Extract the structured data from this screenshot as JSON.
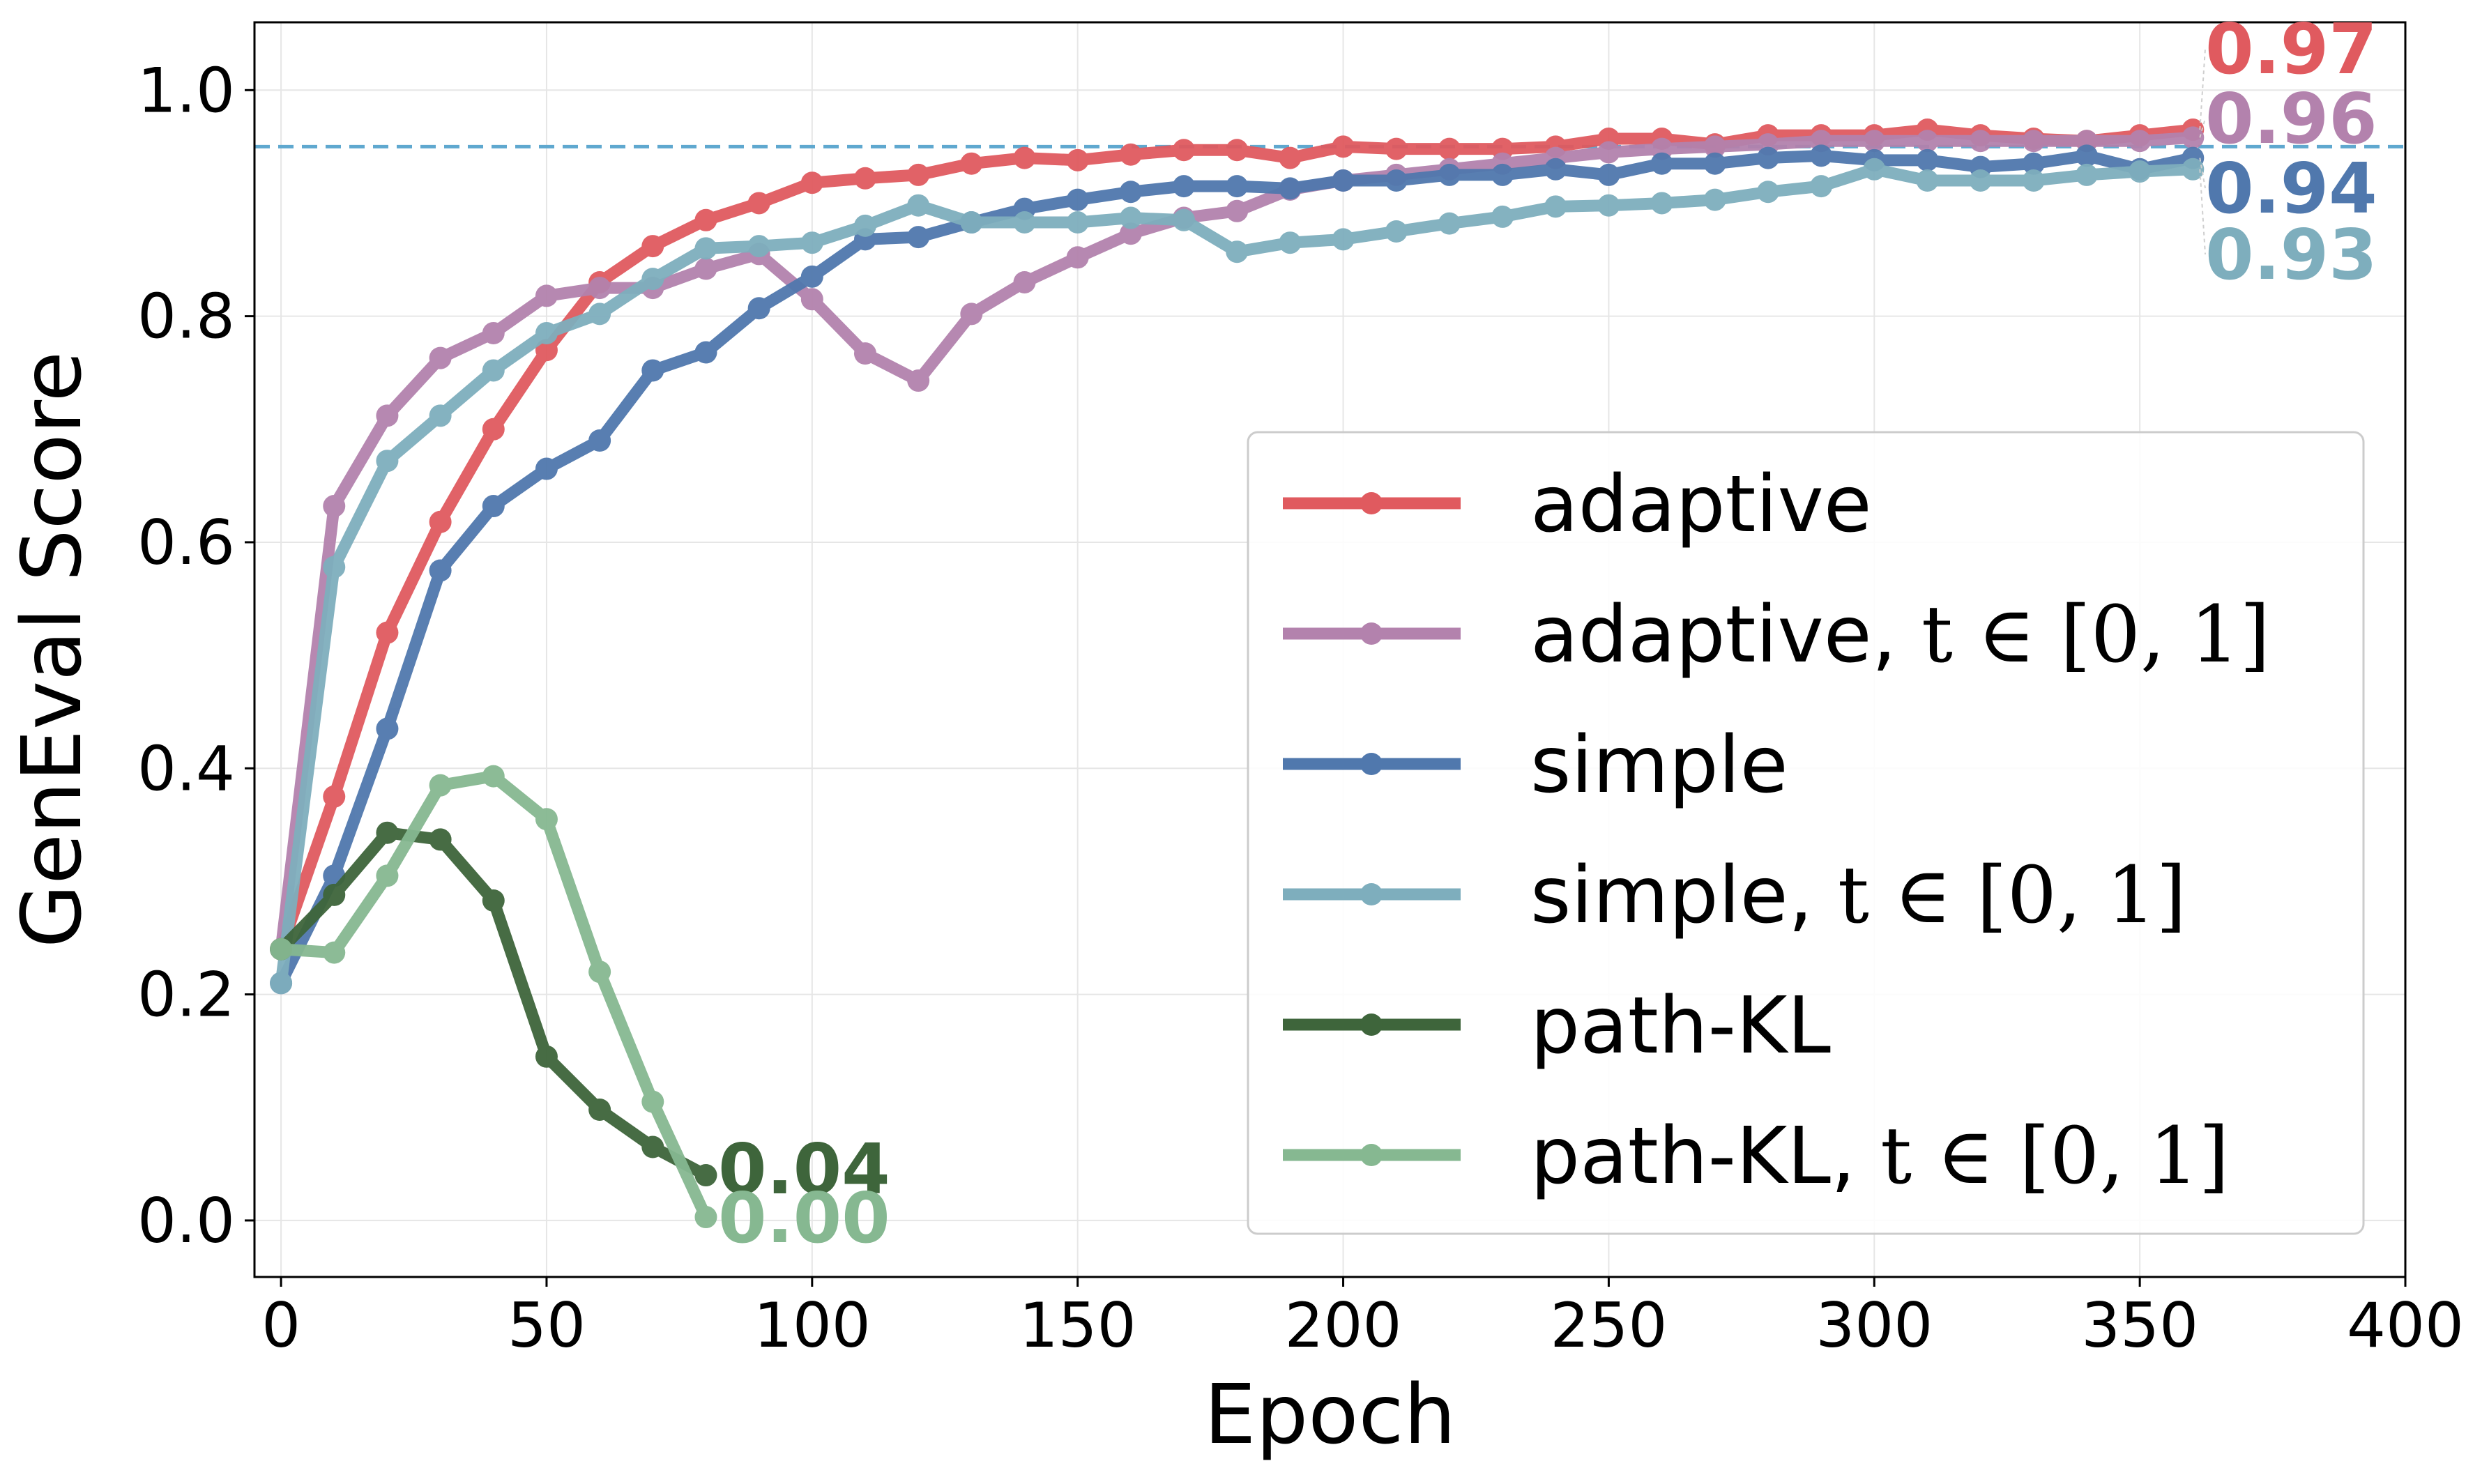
{
  "chart_data": {
    "type": "line",
    "title": "",
    "xlabel": "Epoch",
    "ylabel": "GenEval Score",
    "xlim": [
      -5,
      400
    ],
    "ylim": [
      -0.05,
      1.06
    ],
    "xticks": [
      0,
      50,
      100,
      150,
      200,
      250,
      300,
      350,
      400
    ],
    "yticks": [
      0.0,
      0.2,
      0.4,
      0.6,
      0.8,
      1.0
    ],
    "xtick_labels": [
      "0",
      "50",
      "100",
      "150",
      "200",
      "250",
      "300",
      "350",
      "400"
    ],
    "ytick_labels": [
      "0.0",
      "0.2",
      "0.4",
      "0.6",
      "0.8",
      "1.0"
    ],
    "grid": true,
    "reference_line": {
      "y": 0.95,
      "style": "dashed",
      "color": "#5fa8cf"
    },
    "legend_position": "lower-right",
    "series": [
      {
        "name": "adaptive",
        "legend_main": "adaptive",
        "legend_suffix": "",
        "color": "#e05a5f",
        "x": [
          0,
          10,
          20,
          30,
          40,
          50,
          60,
          70,
          80,
          90,
          100,
          110,
          120,
          130,
          140,
          150,
          160,
          170,
          180,
          190,
          200,
          210,
          220,
          230,
          240,
          250,
          260,
          270,
          280,
          290,
          300,
          310,
          320,
          330,
          340,
          350,
          360
        ],
        "values": [
          0.24,
          0.375,
          0.52,
          0.618,
          0.7,
          0.77,
          0.83,
          0.862,
          0.885,
          0.9,
          0.918,
          0.922,
          0.925,
          0.935,
          0.94,
          0.938,
          0.943,
          0.947,
          0.947,
          0.94,
          0.95,
          0.948,
          0.948,
          0.948,
          0.95,
          0.957,
          0.957,
          0.952,
          0.96,
          0.96,
          0.96,
          0.965,
          0.96,
          0.957,
          0.955,
          0.96,
          0.965
        ],
        "end_label": "0.97"
      },
      {
        "name": "adaptive, t ∈ [0, 1]",
        "legend_main": "adaptive, ",
        "legend_suffix": "t ∈ [0, 1]",
        "color": "#b382ad",
        "x": [
          0,
          10,
          20,
          30,
          40,
          50,
          60,
          70,
          80,
          90,
          100,
          110,
          120,
          130,
          140,
          150,
          160,
          170,
          180,
          190,
          200,
          210,
          220,
          230,
          240,
          250,
          260,
          270,
          280,
          290,
          300,
          310,
          320,
          330,
          340,
          350,
          360
        ],
        "values": [
          0.24,
          0.632,
          0.712,
          0.763,
          0.785,
          0.818,
          0.825,
          0.825,
          0.842,
          0.855,
          0.815,
          0.767,
          0.743,
          0.802,
          0.83,
          0.852,
          0.873,
          0.887,
          0.893,
          0.912,
          0.92,
          0.925,
          0.93,
          0.935,
          0.94,
          0.945,
          0.948,
          0.95,
          0.952,
          0.955,
          0.955,
          0.955,
          0.955,
          0.955,
          0.955,
          0.955,
          0.958
        ],
        "end_label": "0.96"
      },
      {
        "name": "simple",
        "legend_main": "simple",
        "legend_suffix": "",
        "color": "#5078ad",
        "x": [
          0,
          10,
          20,
          30,
          40,
          50,
          60,
          70,
          80,
          90,
          100,
          110,
          120,
          130,
          140,
          150,
          160,
          170,
          180,
          190,
          200,
          210,
          220,
          230,
          240,
          250,
          260,
          270,
          280,
          290,
          300,
          310,
          320,
          330,
          340,
          350,
          360
        ],
        "values": [
          0.21,
          0.305,
          0.435,
          0.575,
          0.632,
          0.665,
          0.69,
          0.752,
          0.768,
          0.807,
          0.835,
          0.868,
          0.87,
          0.883,
          0.895,
          0.903,
          0.91,
          0.915,
          0.915,
          0.913,
          0.92,
          0.92,
          0.925,
          0.925,
          0.93,
          0.925,
          0.935,
          0.935,
          0.94,
          0.942,
          0.938,
          0.938,
          0.932,
          0.935,
          0.942,
          0.93,
          0.94
        ],
        "end_label": "0.94"
      },
      {
        "name": "simple, t ∈ [0, 1]",
        "legend_main": "simple, ",
        "legend_suffix": "t ∈ [0, 1]",
        "color": "#7eaebd",
        "x": [
          0,
          10,
          20,
          30,
          40,
          50,
          60,
          70,
          80,
          90,
          100,
          110,
          120,
          130,
          140,
          150,
          160,
          170,
          180,
          190,
          200,
          210,
          220,
          230,
          240,
          250,
          260,
          270,
          280,
          290,
          300,
          310,
          320,
          330,
          340,
          350,
          360
        ],
        "values": [
          0.21,
          0.578,
          0.672,
          0.712,
          0.752,
          0.785,
          0.802,
          0.833,
          0.86,
          0.862,
          0.865,
          0.88,
          0.898,
          0.883,
          0.883,
          0.883,
          0.887,
          0.885,
          0.857,
          0.865,
          0.868,
          0.875,
          0.882,
          0.888,
          0.897,
          0.898,
          0.9,
          0.903,
          0.91,
          0.915,
          0.93,
          0.92,
          0.92,
          0.92,
          0.925,
          0.928,
          0.93
        ],
        "end_label": "0.93"
      },
      {
        "name": "path-KL",
        "legend_main": "path-KL",
        "legend_suffix": "",
        "color": "#3e653b",
        "x": [
          0,
          10,
          20,
          30,
          40,
          50,
          60,
          70,
          80
        ],
        "values": [
          0.24,
          0.288,
          0.343,
          0.337,
          0.283,
          0.145,
          0.098,
          0.065,
          0.04
        ],
        "end_label": "0.04"
      },
      {
        "name": "path-KL, t ∈ [0, 1]",
        "legend_main": "path-KL, ",
        "legend_suffix": "t ∈ [0, 1]",
        "color": "#86b891",
        "x": [
          0,
          10,
          20,
          30,
          40,
          50,
          60,
          70,
          80
        ],
        "values": [
          0.24,
          0.237,
          0.305,
          0.385,
          0.393,
          0.355,
          0.22,
          0.105,
          0.003
        ],
        "end_label": "0.00"
      }
    ]
  }
}
